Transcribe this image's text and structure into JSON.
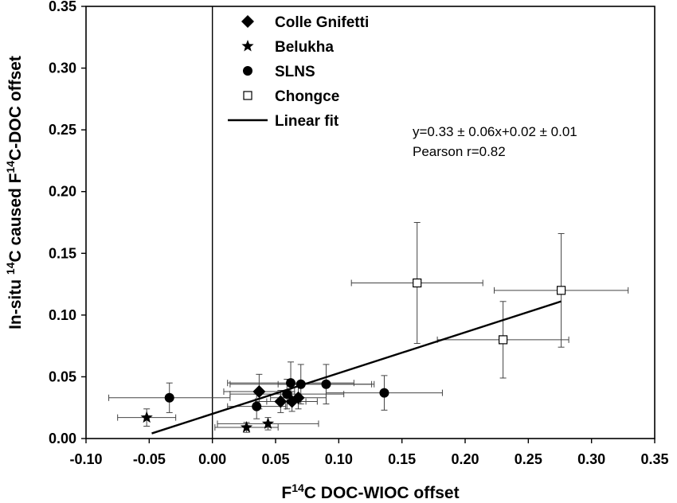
{
  "chart_data": {
    "type": "scatter",
    "xlabel": {
      "pre": "F",
      "sup": "14",
      "post": "C DOC-WIOC offset"
    },
    "ylabel": {
      "pre": "In-situ ",
      "sup1": "14",
      "mid": "C caused  F",
      "sup2": "14",
      "post": "C-DOC offset"
    },
    "xlim": [
      -0.1,
      0.35
    ],
    "ylim": [
      0.0,
      0.35
    ],
    "xticks": [
      "-0.10",
      "-0.05",
      "0.00",
      "0.05",
      "0.10",
      "0.15",
      "0.20",
      "0.25",
      "0.30",
      "0.35"
    ],
    "xtick_values": [
      -0.1,
      -0.05,
      0.0,
      0.05,
      0.1,
      0.15,
      0.2,
      0.25,
      0.3,
      0.35
    ],
    "yticks": [
      "0.00",
      "0.05",
      "0.10",
      "0.15",
      "0.20",
      "0.25",
      "0.30",
      "0.35"
    ],
    "ytick_values": [
      0.0,
      0.05,
      0.1,
      0.15,
      0.2,
      0.25,
      0.3,
      0.35
    ],
    "grid": false,
    "legend_position": "top-left-center",
    "series": [
      {
        "name": "Colle Gnifetti",
        "marker": "diamond",
        "points": [
          {
            "x": 0.037,
            "y": 0.038,
            "xerr": 0.028,
            "yerr": 0.014
          },
          {
            "x": 0.054,
            "y": 0.03,
            "xerr": 0.02,
            "yerr": 0.009
          },
          {
            "x": 0.063,
            "y": 0.03,
            "xerr": 0.02,
            "yerr": 0.008
          },
          {
            "x": 0.068,
            "y": 0.033,
            "xerr": 0.022,
            "yerr": 0.009
          }
        ]
      },
      {
        "name": "Belukha",
        "marker": "star",
        "points": [
          {
            "x": -0.052,
            "y": 0.017,
            "xerr": 0.023,
            "yerr": 0.007
          },
          {
            "x": 0.027,
            "y": 0.009,
            "xerr": 0.025,
            "yerr": 0.004
          },
          {
            "x": 0.044,
            "y": 0.012,
            "xerr": 0.04,
            "yerr": 0.005
          }
        ]
      },
      {
        "name": "SLNS",
        "marker": "circle",
        "points": [
          {
            "x": -0.034,
            "y": 0.033,
            "xerr": 0.048,
            "yerr": 0.012
          },
          {
            "x": 0.035,
            "y": 0.026,
            "xerr": 0.023,
            "yerr": 0.01
          },
          {
            "x": 0.059,
            "y": 0.036,
            "xerr": 0.045,
            "yerr": 0.012
          },
          {
            "x": 0.062,
            "y": 0.045,
            "xerr": 0.05,
            "yerr": 0.017
          },
          {
            "x": 0.07,
            "y": 0.044,
            "xerr": 0.056,
            "yerr": 0.016
          },
          {
            "x": 0.09,
            "y": 0.044,
            "xerr": 0.038,
            "yerr": 0.016
          },
          {
            "x": 0.136,
            "y": 0.037,
            "xerr": 0.046,
            "yerr": 0.014
          }
        ]
      },
      {
        "name": "Chongce",
        "marker": "open-square",
        "points": [
          {
            "x": 0.162,
            "y": 0.126,
            "xerr": 0.052,
            "yerr": 0.049
          },
          {
            "x": 0.23,
            "y": 0.08,
            "xerr": 0.052,
            "yerr": 0.031
          },
          {
            "x": 0.276,
            "y": 0.12,
            "xerr": 0.053,
            "yerr": 0.046
          }
        ]
      }
    ],
    "fit": {
      "name": "Linear fit",
      "slope": 0.33,
      "intercept": 0.02,
      "x_range": [
        -0.048,
        0.276
      ],
      "equation": "y=0.33 ± 0.06x+0.02 ± 0.01",
      "pearson": "Pearson r=0.82"
    },
    "legend": [
      "Colle Gnifetti",
      "Belukha",
      "SLNS",
      "Chongce",
      "Linear fit"
    ]
  }
}
